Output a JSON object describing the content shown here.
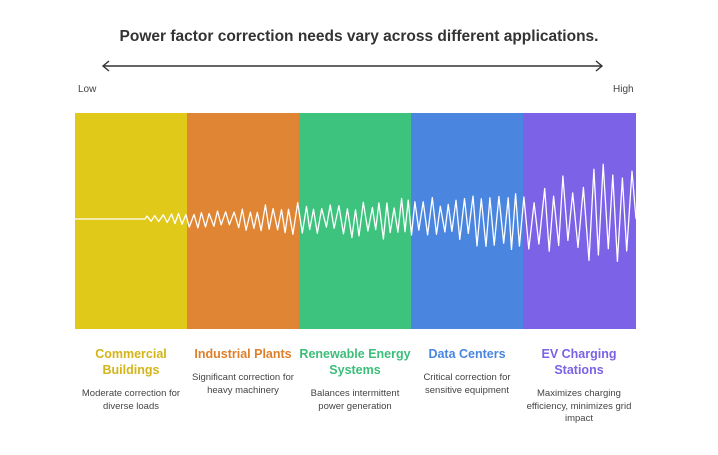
{
  "title": "Power factor correction needs vary across different applications.",
  "scale": {
    "low": "Low",
    "high": "High"
  },
  "categories": [
    {
      "name": "Commercial Buildings",
      "description": "Moderate correction for diverse loads",
      "color": "#e1c919",
      "text_color": "#d4b418"
    },
    {
      "name": "Industrial Plants",
      "description": "Significant correction for heavy machinery",
      "color": "#e08534",
      "text_color": "#df7f2a"
    },
    {
      "name": "Renewable Energy Systems",
      "description": "Balances intermittent power generation",
      "color": "#3ec37f",
      "text_color": "#3cbe7a"
    },
    {
      "name": "Data Centers",
      "description": "Critical correction for sensitive equipment",
      "color": "#4a86e0",
      "text_color": "#4a86e0"
    },
    {
      "name": "EV Charging Stations",
      "description": "Maximizes charging efficiency, minimizes grid impact",
      "color": "#7b62e6",
      "text_color": "#7b62e6"
    }
  ]
}
